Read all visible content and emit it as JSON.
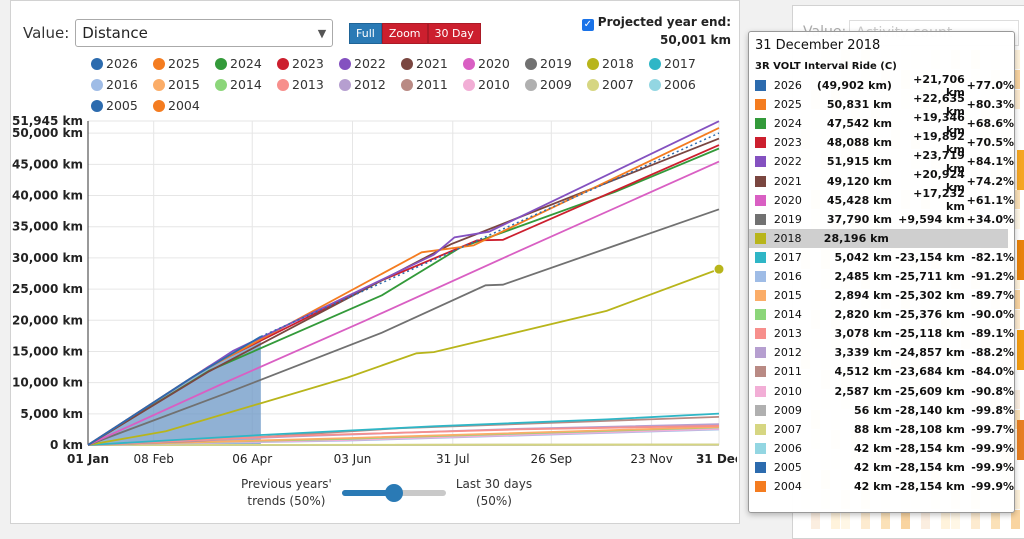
{
  "main": {
    "value_label": "Value:",
    "value_selected": "Distance",
    "zoom_buttons": [
      "Full",
      "Zoom",
      "30 Day"
    ],
    "projected_label": "Projected year end:",
    "projected_value": "50,001 km",
    "slider": {
      "left_label_1": "Previous years'",
      "left_label_2": "trends (50%)",
      "right_label_1": "Last 30 days",
      "right_label_2": "(50%)",
      "value": 0.5
    }
  },
  "background_panel": {
    "value_label": "Value:",
    "value_selected": "Activity count"
  },
  "legend": [
    {
      "year": "2026",
      "color": "#2c6bae"
    },
    {
      "year": "2025",
      "color": "#f47c20"
    },
    {
      "year": "2024",
      "color": "#339a3a"
    },
    {
      "year": "2023",
      "color": "#cc1f2e"
    },
    {
      "year": "2022",
      "color": "#8451c0"
    },
    {
      "year": "2021",
      "color": "#7a4640"
    },
    {
      "year": "2020",
      "color": "#d95fc3"
    },
    {
      "year": "2019",
      "color": "#717171"
    },
    {
      "year": "2018",
      "color": "#b8b51b"
    },
    {
      "year": "2017",
      "color": "#2fb6c6"
    },
    {
      "year": "2016",
      "color": "#9fbce6"
    },
    {
      "year": "2015",
      "color": "#fbad68"
    },
    {
      "year": "2014",
      "color": "#8cd67a"
    },
    {
      "year": "2013",
      "color": "#f78f8c"
    },
    {
      "year": "2012",
      "color": "#b69fd0"
    },
    {
      "year": "2011",
      "color": "#b98a84"
    },
    {
      "year": "2010",
      "color": "#f2aed6"
    },
    {
      "year": "2009",
      "color": "#b0b0b0"
    },
    {
      "year": "2007",
      "color": "#d6d682"
    },
    {
      "year": "2006",
      "color": "#93d6e2"
    },
    {
      "year": "2005",
      "color": "#2c6bae"
    },
    {
      "year": "2004",
      "color": "#f47c20"
    }
  ],
  "chart_data": {
    "type": "line",
    "x_ticks": [
      "01 Jan",
      "08 Feb",
      "06 Apr",
      "03 Jun",
      "31 Jul",
      "26 Sep",
      "23 Nov",
      "31 Dec"
    ],
    "y_ticks": [
      "0 km",
      "5,000 km",
      "10,000 km",
      "15,000 km",
      "20,000 km",
      "25,000 km",
      "30,000 km",
      "35,000 km",
      "40,000 km",
      "45,000 km",
      "50,000 km",
      "51,945 km"
    ],
    "ylim": [
      0,
      51945
    ],
    "series": [
      {
        "name": "2022",
        "color": "#8451c0",
        "points": [
          [
            0,
            0
          ],
          [
            84,
            15100
          ],
          [
            200,
            30500
          ],
          [
            212,
            33300
          ],
          [
            232,
            34200
          ],
          [
            365,
            51915
          ]
        ]
      },
      {
        "name": "2025",
        "color": "#f47c20",
        "points": [
          [
            0,
            0
          ],
          [
            65,
            11700
          ],
          [
            193,
            30900
          ],
          [
            223,
            32000
          ],
          [
            365,
            50831
          ]
        ]
      },
      {
        "name": "2021",
        "color": "#7a4640",
        "points": [
          [
            0,
            0
          ],
          [
            70,
            11800
          ],
          [
            150,
            23500
          ],
          [
            210,
            32200
          ],
          [
            365,
            49120
          ]
        ]
      },
      {
        "name": "2023",
        "color": "#cc1f2e",
        "points": [
          [
            0,
            0
          ],
          [
            70,
            12600
          ],
          [
            170,
            26400
          ],
          [
            225,
            32800
          ],
          [
            240,
            32900
          ],
          [
            365,
            48088
          ]
        ]
      },
      {
        "name": "2024",
        "color": "#339a3a",
        "points": [
          [
            0,
            0
          ],
          [
            70,
            11900
          ],
          [
            170,
            24000
          ],
          [
            215,
            31600
          ],
          [
            305,
            40600
          ],
          [
            365,
            47542
          ]
        ]
      },
      {
        "name": "2020",
        "color": "#d95fc3",
        "points": [
          [
            0,
            0
          ],
          [
            80,
            10100
          ],
          [
            160,
            19900
          ],
          [
            250,
            31200
          ],
          [
            365,
            45428
          ]
        ]
      },
      {
        "name": "2019",
        "color": "#717171",
        "points": [
          [
            0,
            0
          ],
          [
            80,
            8300
          ],
          [
            170,
            18000
          ],
          [
            230,
            25600
          ],
          [
            240,
            25700
          ],
          [
            365,
            37790
          ]
        ]
      },
      {
        "name": "2018",
        "color": "#b8b51b",
        "points": [
          [
            0,
            0
          ],
          [
            45,
            2200
          ],
          [
            100,
            6700
          ],
          [
            150,
            10800
          ],
          [
            190,
            14700
          ],
          [
            200,
            14900
          ],
          [
            300,
            21500
          ],
          [
            365,
            28196
          ]
        ]
      },
      {
        "name": "2017",
        "color": "#2fb6c6",
        "points": [
          [
            0,
            0
          ],
          [
            100,
            1600
          ],
          [
            200,
            3000
          ],
          [
            300,
            4100
          ],
          [
            365,
            5042
          ]
        ]
      },
      {
        "name": "2013",
        "color": "#f78f8c",
        "points": [
          [
            0,
            0
          ],
          [
            120,
            1500
          ],
          [
            250,
            2500
          ],
          [
            365,
            3078
          ]
        ]
      },
      {
        "name": "2012",
        "color": "#b69fd0",
        "points": [
          [
            0,
            0
          ],
          [
            120,
            1400
          ],
          [
            250,
            2600
          ],
          [
            365,
            3339
          ]
        ]
      },
      {
        "name": "2011",
        "color": "#b98a84",
        "points": [
          [
            0,
            0
          ],
          [
            60,
            600
          ],
          [
            180,
            2700
          ],
          [
            365,
            4512
          ]
        ]
      },
      {
        "name": "2015",
        "color": "#fbad68",
        "points": [
          [
            0,
            0
          ],
          [
            150,
            1100
          ],
          [
            365,
            2894
          ]
        ]
      },
      {
        "name": "2014",
        "color": "#8cd67a",
        "points": [
          [
            0,
            0
          ],
          [
            150,
            1000
          ],
          [
            365,
            2820
          ]
        ]
      },
      {
        "name": "2010",
        "color": "#f2aed6",
        "points": [
          [
            0,
            0
          ],
          [
            150,
            800
          ],
          [
            365,
            2587
          ]
        ]
      },
      {
        "name": "2016",
        "color": "#9fbce6",
        "points": [
          [
            0,
            0
          ],
          [
            150,
            700
          ],
          [
            365,
            2485
          ]
        ]
      },
      {
        "name": "2007",
        "color": "#d6d682",
        "points": [
          [
            0,
            0
          ],
          [
            365,
            88
          ]
        ]
      },
      {
        "name": "2009",
        "color": "#b0b0b0",
        "points": [
          [
            0,
            0
          ],
          [
            365,
            56
          ]
        ]
      },
      {
        "name": "2006",
        "color": "#93d6e2",
        "points": [
          [
            0,
            0
          ],
          [
            365,
            42
          ]
        ]
      },
      {
        "name": "2004",
        "color": "#f47c20",
        "points": [
          [
            0,
            0
          ],
          [
            365,
            42
          ]
        ]
      }
    ],
    "current_year": {
      "name": "2026",
      "color": "#2c6bae",
      "points": [
        [
          0,
          0
        ],
        [
          20,
          3600
        ],
        [
          60,
          10800
        ],
        [
          100,
          17400
        ]
      ]
    },
    "projection": {
      "color": "#2c6bae",
      "points": [
        [
          100,
          17400
        ],
        [
          365,
          50001
        ]
      ]
    },
    "highlight_point": {
      "x": 365,
      "y": 28196,
      "color": "#b8b51b"
    }
  },
  "tooltip": {
    "date": "31 December 2018",
    "activity": "3R VOLT Interval Ride (C)",
    "rows": [
      {
        "year": "2026",
        "color": "#2c6bae",
        "dist": "(49,902 km)",
        "diff": "+21,706 km",
        "pct": "+77.0%"
      },
      {
        "year": "2025",
        "color": "#f47c20",
        "dist": "50,831 km",
        "diff": "+22,635 km",
        "pct": "+80.3%"
      },
      {
        "year": "2024",
        "color": "#339a3a",
        "dist": "47,542 km",
        "diff": "+19,346 km",
        "pct": "+68.6%"
      },
      {
        "year": "2023",
        "color": "#cc1f2e",
        "dist": "48,088 km",
        "diff": "+19,892 km",
        "pct": "+70.5%"
      },
      {
        "year": "2022",
        "color": "#8451c0",
        "dist": "51,915 km",
        "diff": "+23,719 km",
        "pct": "+84.1%"
      },
      {
        "year": "2021",
        "color": "#7a4640",
        "dist": "49,120 km",
        "diff": "+20,924 km",
        "pct": "+74.2%"
      },
      {
        "year": "2020",
        "color": "#d95fc3",
        "dist": "45,428 km",
        "diff": "+17,232 km",
        "pct": "+61.1%"
      },
      {
        "year": "2019",
        "color": "#717171",
        "dist": "37,790 km",
        "diff": "+9,594 km",
        "pct": "+34.0%"
      },
      {
        "year": "2018",
        "color": "#b8b51b",
        "dist": "28,196 km",
        "diff": "",
        "pct": "",
        "highlight": true
      },
      {
        "year": "2017",
        "color": "#2fb6c6",
        "dist": "5,042 km",
        "diff": "-23,154 km",
        "pct": "-82.1%"
      },
      {
        "year": "2016",
        "color": "#9fbce6",
        "dist": "2,485 km",
        "diff": "-25,711 km",
        "pct": "-91.2%"
      },
      {
        "year": "2015",
        "color": "#fbad68",
        "dist": "2,894 km",
        "diff": "-25,302 km",
        "pct": "-89.7%"
      },
      {
        "year": "2014",
        "color": "#8cd67a",
        "dist": "2,820 km",
        "diff": "-25,376 km",
        "pct": "-90.0%"
      },
      {
        "year": "2013",
        "color": "#f78f8c",
        "dist": "3,078 km",
        "diff": "-25,118 km",
        "pct": "-89.1%"
      },
      {
        "year": "2012",
        "color": "#b69fd0",
        "dist": "3,339 km",
        "diff": "-24,857 km",
        "pct": "-88.2%"
      },
      {
        "year": "2011",
        "color": "#b98a84",
        "dist": "4,512 km",
        "diff": "-23,684 km",
        "pct": "-84.0%"
      },
      {
        "year": "2010",
        "color": "#f2aed6",
        "dist": "2,587 km",
        "diff": "-25,609 km",
        "pct": "-90.8%"
      },
      {
        "year": "2009",
        "color": "#b0b0b0",
        "dist": "56 km",
        "diff": "-28,140 km",
        "pct": "-99.8%"
      },
      {
        "year": "2007",
        "color": "#d6d682",
        "dist": "88 km",
        "diff": "-28,108 km",
        "pct": "-99.7%"
      },
      {
        "year": "2006",
        "color": "#93d6e2",
        "dist": "42 km",
        "diff": "-28,154 km",
        "pct": "-99.9%"
      },
      {
        "year": "2005",
        "color": "#2c6bae",
        "dist": "42 km",
        "diff": "-28,154 km",
        "pct": "-99.9%"
      },
      {
        "year": "2004",
        "color": "#f47c20",
        "dist": "42 km",
        "diff": "-28,154 km",
        "pct": "-99.9%"
      }
    ]
  }
}
